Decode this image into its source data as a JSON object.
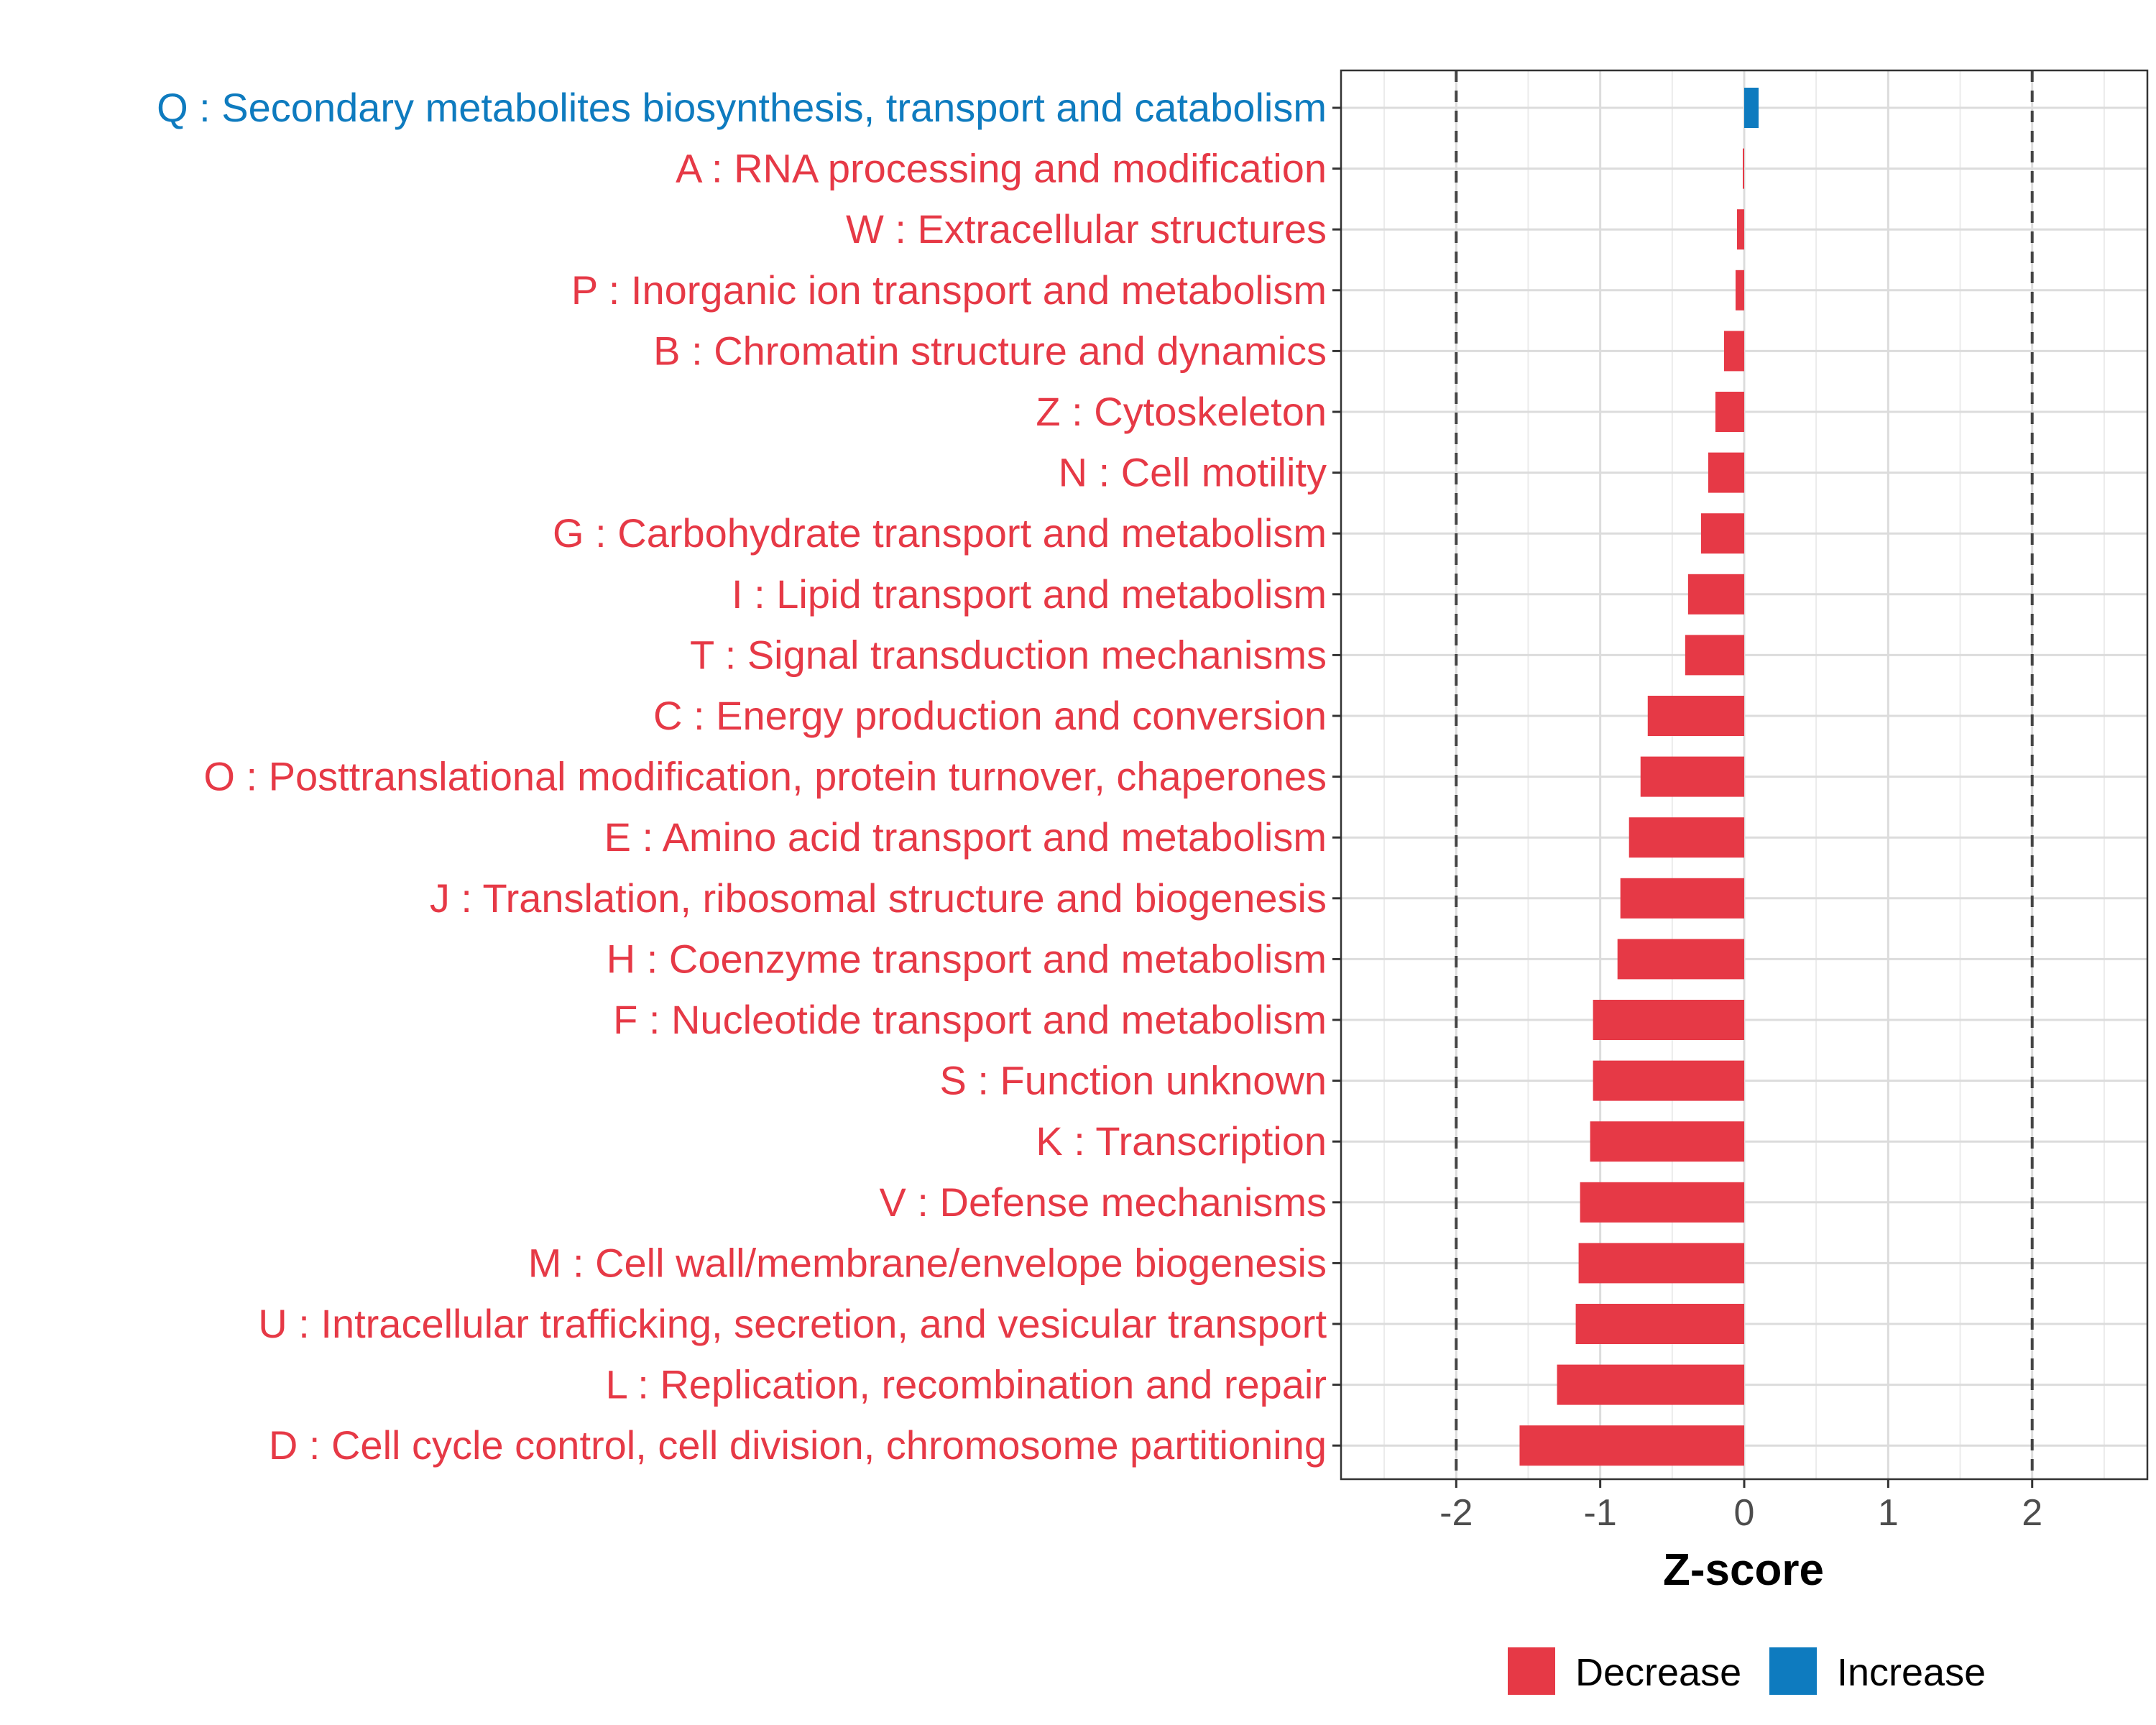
{
  "chart_data": {
    "type": "bar",
    "orientation": "horizontal",
    "title": "",
    "xlabel": "Z-score",
    "ylabel": "",
    "xlim": [
      -2.8,
      2.8
    ],
    "x_ticks": [
      -2,
      -1,
      0,
      1,
      2
    ],
    "x_tick_labels": [
      "-2",
      "-1",
      "0",
      "1",
      "2"
    ],
    "reference_lines": [
      -2,
      2
    ],
    "grid": true,
    "colors": {
      "Decrease": "#e63946",
      "Increase": "#0e7bbf"
    },
    "legend": {
      "position": "bottom",
      "entries": [
        {
          "label": "Decrease",
          "color": "#e63946"
        },
        {
          "label": "Increase",
          "color": "#0e7bbf"
        }
      ]
    },
    "categories": [
      "Q : Secondary metabolites biosynthesis, transport and catabolism",
      "A : RNA processing and modification",
      "W : Extracellular structures",
      "P : Inorganic ion transport and metabolism",
      "B : Chromatin structure and dynamics",
      "Z : Cytoskeleton",
      "N : Cell motility",
      "G : Carbohydrate transport and metabolism",
      "I : Lipid transport and metabolism",
      "T : Signal transduction mechanisms",
      "C : Energy production and conversion",
      "O : Posttranslational modification, protein turnover, chaperones",
      "E : Amino acid transport and metabolism",
      "J : Translation, ribosomal structure and biogenesis",
      "H : Coenzyme transport and metabolism",
      "F : Nucleotide transport and metabolism",
      "S : Function unknown",
      "K : Transcription",
      "V : Defense mechanisms",
      "M : Cell wall/membrane/envelope biogenesis",
      "U : Intracellular trafficking, secretion, and vesicular transport",
      "L : Replication, recombination and repair",
      "D : Cell cycle control, cell division, chromosome partitioning"
    ],
    "values": [
      0.1,
      -0.01,
      -0.05,
      -0.06,
      -0.14,
      -0.2,
      -0.25,
      -0.3,
      -0.39,
      -0.41,
      -0.67,
      -0.72,
      -0.8,
      -0.86,
      -0.88,
      -1.05,
      -1.05,
      -1.07,
      -1.14,
      -1.15,
      -1.17,
      -1.3,
      -1.56
    ],
    "groups": [
      "Increase",
      "Decrease",
      "Decrease",
      "Decrease",
      "Decrease",
      "Decrease",
      "Decrease",
      "Decrease",
      "Decrease",
      "Decrease",
      "Decrease",
      "Decrease",
      "Decrease",
      "Decrease",
      "Decrease",
      "Decrease",
      "Decrease",
      "Decrease",
      "Decrease",
      "Decrease",
      "Decrease",
      "Decrease",
      "Decrease"
    ]
  }
}
